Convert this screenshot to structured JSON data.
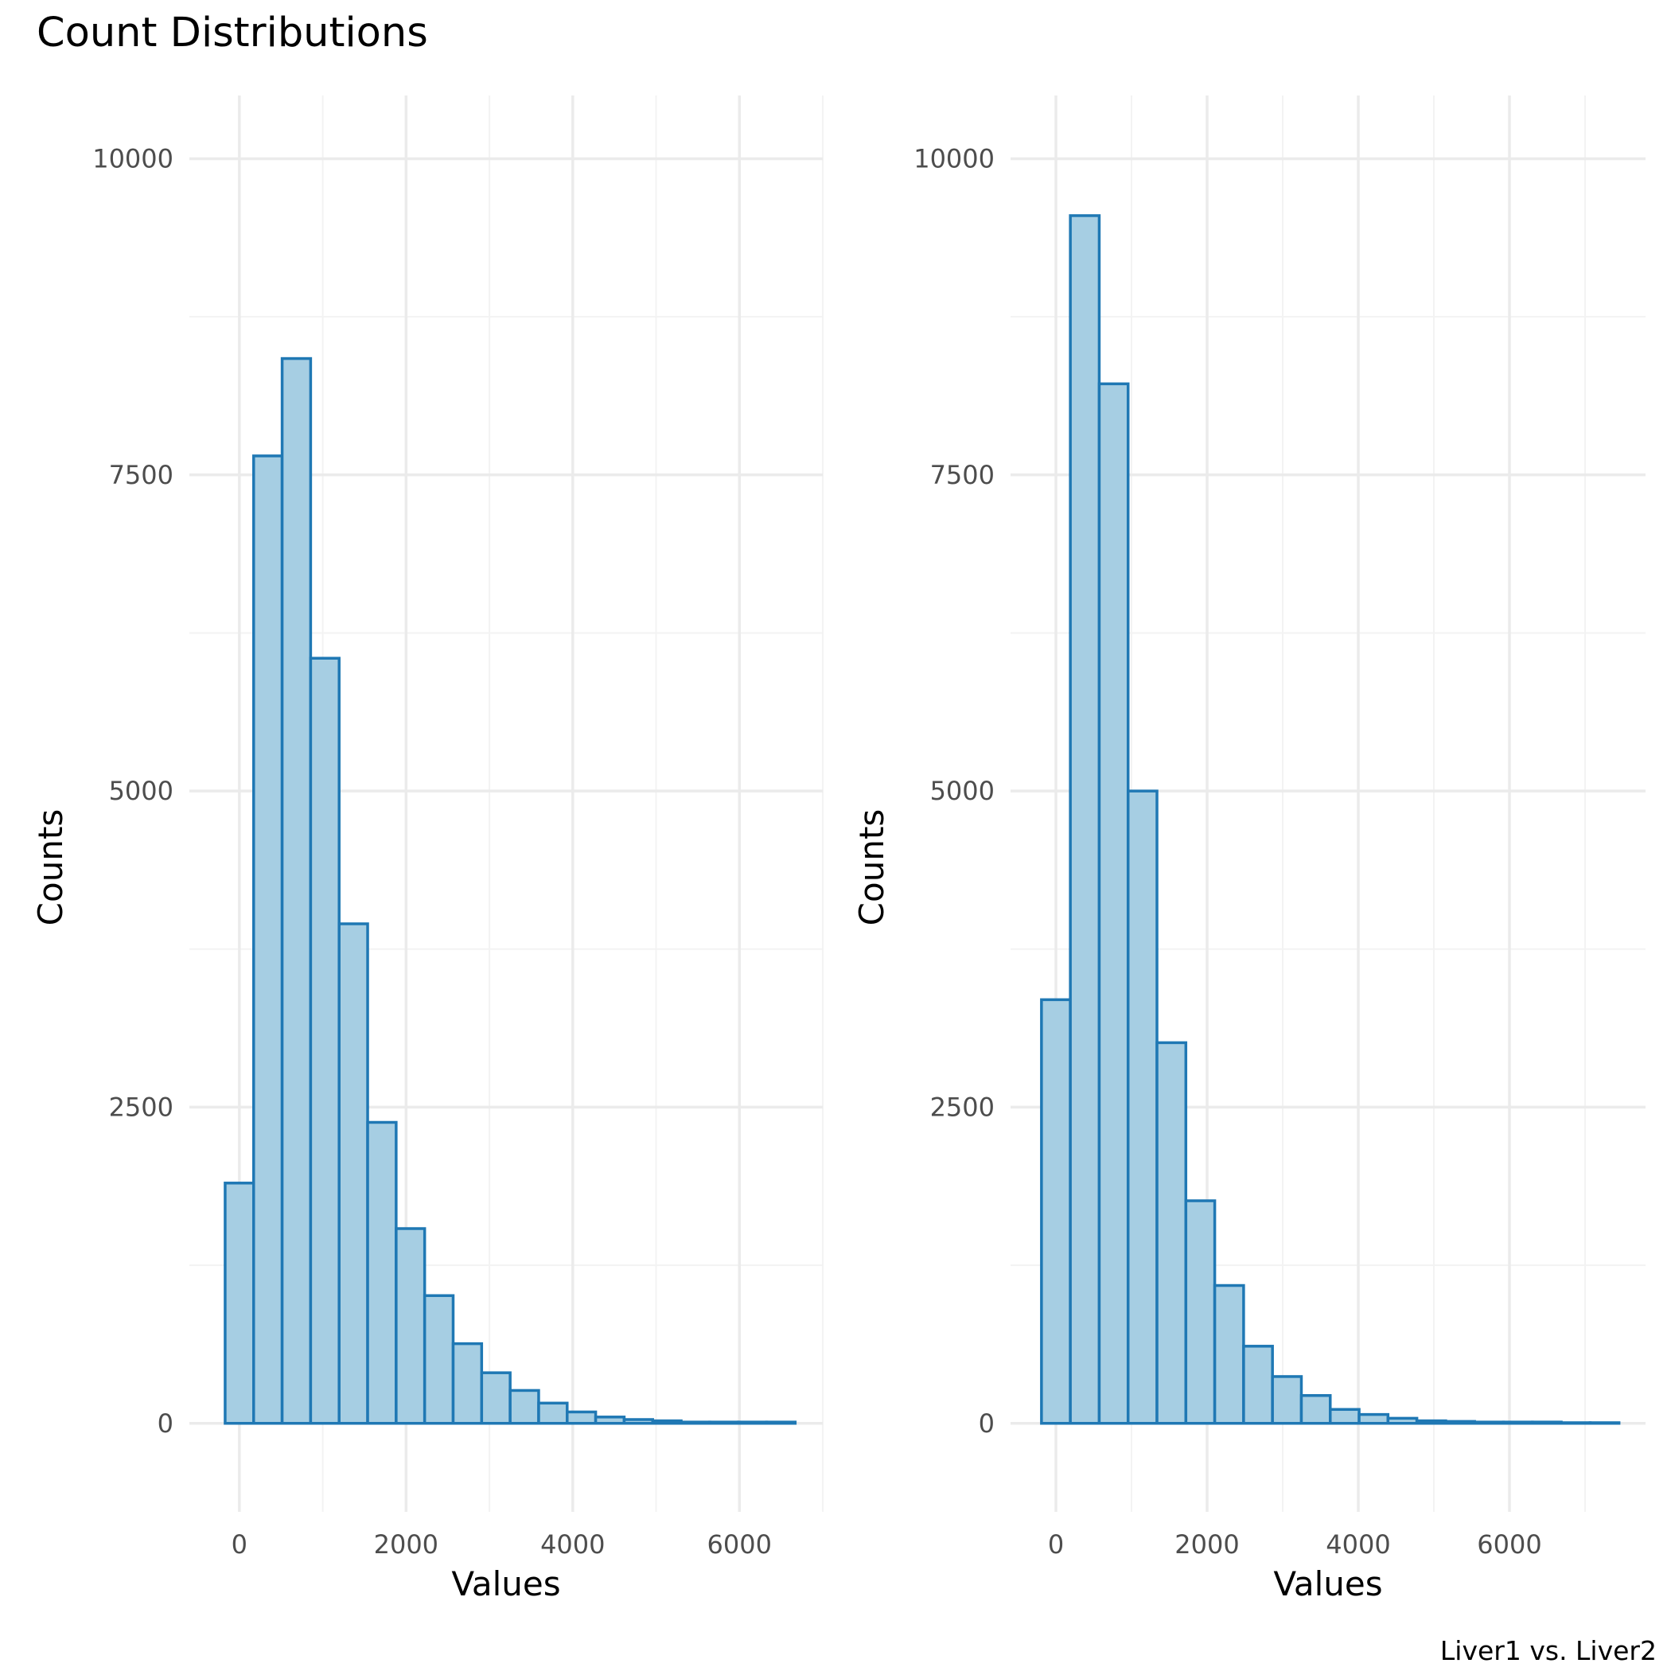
{
  "title": "Count Distributions",
  "caption": "Liver1 vs. Liver2",
  "colors": {
    "bar_fill": "#a6cee3",
    "bar_stroke": "#1f78b4",
    "grid_major": "#ebebeb",
    "grid_minor": "#f3f3f3",
    "tick_text": "#4d4d4d"
  },
  "chart_data": [
    {
      "type": "bar",
      "subtype": "histogram",
      "xlabel": "Values",
      "ylabel": "Counts",
      "xlim": [
        -600,
        7000
      ],
      "ylim": [
        -700,
        10500
      ],
      "xticks": [
        0,
        2000,
        4000,
        6000
      ],
      "yticks": [
        0,
        2500,
        5000,
        7500,
        10000
      ],
      "grid": true,
      "bin_width": 342,
      "bin_start": -171,
      "values": [
        1900,
        7650,
        8420,
        6050,
        3950,
        2380,
        1540,
        1010,
        630,
        400,
        260,
        160,
        90,
        50,
        30,
        20,
        10,
        10,
        10,
        10
      ]
    },
    {
      "type": "bar",
      "subtype": "histogram",
      "xlabel": "Values",
      "ylabel": "Counts",
      "xlim": [
        -600,
        7800
      ],
      "ylim": [
        -700,
        10500
      ],
      "xticks": [
        0,
        2000,
        4000,
        6000
      ],
      "yticks": [
        0,
        2500,
        5000,
        7500,
        10000
      ],
      "grid": true,
      "bin_width": 382,
      "bin_start": -191,
      "values": [
        3350,
        9550,
        8220,
        5000,
        3010,
        1760,
        1090,
        610,
        370,
        220,
        110,
        70,
        40,
        20,
        15,
        10,
        10,
        10,
        5,
        5
      ]
    }
  ]
}
